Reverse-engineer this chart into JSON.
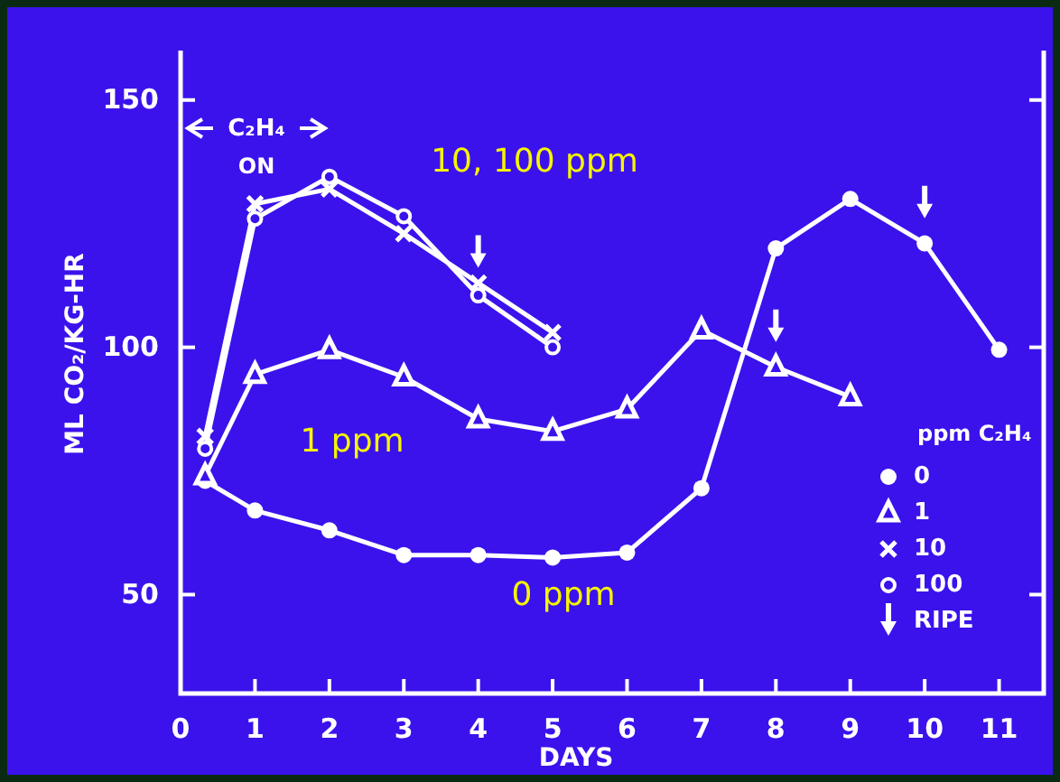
{
  "chart_data": {
    "type": "line",
    "xlabel": "DAYS",
    "ylabel": "ML CO₂/KG-HR",
    "legend_title": "ppm C₂H₄",
    "legend": "bottom right",
    "grid": false,
    "xlim": [
      0,
      11.6
    ],
    "ylim": [
      30,
      160
    ],
    "xticks": [
      0,
      1,
      2,
      3,
      4,
      5,
      6,
      7,
      8,
      9,
      10,
      11
    ],
    "yticks": [
      50,
      100,
      150
    ],
    "series": [
      {
        "name": "0",
        "color": "#ffffff",
        "marker": "circle",
        "x": [
          0.33,
          1,
          2,
          3,
          4,
          5,
          6,
          7,
          8,
          9,
          10,
          11
        ],
        "values": [
          73,
          67,
          63,
          58,
          58,
          57.5,
          58.5,
          71.5,
          120,
          130,
          121,
          99.5
        ]
      },
      {
        "name": "1",
        "color": "#ffffff",
        "marker": "triangle",
        "x": [
          0.33,
          1,
          2,
          3,
          4,
          5,
          6,
          7,
          8,
          9
        ],
        "values": [
          74,
          94.5,
          99.5,
          94,
          85.5,
          83,
          87.5,
          103.5,
          96,
          90
        ]
      },
      {
        "name": "10",
        "color": "#ffffff",
        "marker": "cross",
        "x": [
          0.33,
          1,
          2,
          3,
          4,
          5
        ],
        "values": [
          82,
          129,
          132,
          123,
          113,
          103
        ]
      },
      {
        "name": "100",
        "color": "#ffffff",
        "marker": "open-circle",
        "x": [
          0.33,
          1,
          2,
          3,
          4,
          5
        ],
        "values": [
          79.5,
          126,
          134.5,
          126.5,
          110.5,
          100
        ]
      },
      {
        "name": "RIPE",
        "type": "scatter",
        "color": "#ffffff",
        "x": [
          4,
          8,
          10
        ],
        "values": [
          119,
          104,
          129
        ]
      }
    ],
    "annotations": [
      "C₂H₄ ON",
      "10, 100 ppm",
      "1 ppm",
      "0 ppm"
    ]
  }
}
